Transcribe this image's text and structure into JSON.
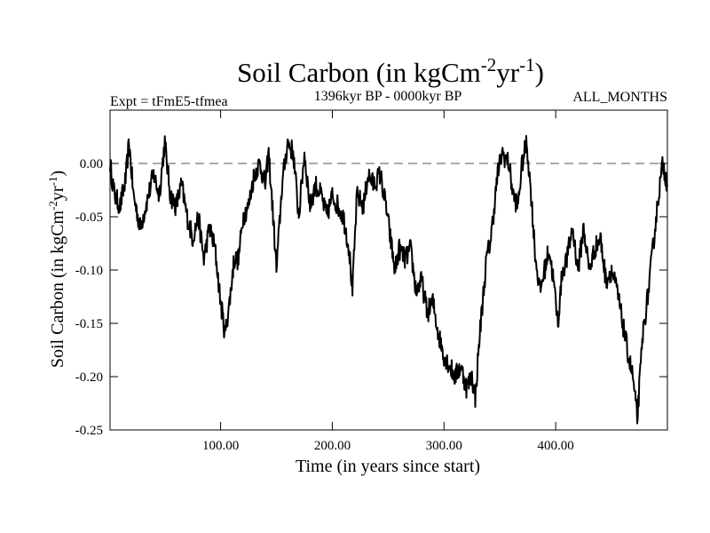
{
  "chart_data": {
    "type": "line",
    "title": {
      "main": "Soil Carbon (in kgCm",
      "sup1": "-2",
      "mid": "yr",
      "sup2": "-1",
      "end": ")"
    },
    "expt_label": "Expt = tFmE5-tfmea",
    "period_label": "1396kyr BP - 0000kyr BP",
    "season_label": "ALL_MONTHS",
    "xlabel": "Time (in years since start)",
    "ylabel": {
      "main": "Soil Carbon (in kgCm",
      "sup1": "-2",
      "mid": "yr",
      "sup2": "-1",
      "end": ")"
    },
    "xlim": [
      1,
      500
    ],
    "ylim": [
      -0.25,
      0.05
    ],
    "xticks": [
      100,
      200,
      300,
      400
    ],
    "xtick_labels": [
      "100.00",
      "200.00",
      "300.00",
      "400.00"
    ],
    "yticks": [
      0.0,
      -0.05,
      -0.1,
      -0.15,
      -0.2,
      -0.25
    ],
    "ytick_labels": [
      "0.00",
      "-0.05",
      "-0.10",
      "-0.15",
      "-0.20",
      "-0.25"
    ],
    "reference_line": {
      "y": 0.0,
      "style": "dashed"
    },
    "line_color": "#000000",
    "series": [
      {
        "name": "Soil Carbon",
        "x": [
          1,
          5,
          10,
          15,
          18,
          22,
          28,
          33,
          40,
          45,
          50,
          55,
          60,
          65,
          70,
          75,
          80,
          85,
          90,
          95,
          100,
          104,
          108,
          112,
          116,
          120,
          125,
          130,
          135,
          140,
          143,
          147,
          150,
          155,
          160,
          165,
          170,
          175,
          180,
          185,
          190,
          195,
          200,
          205,
          210,
          215,
          218,
          222,
          228,
          232,
          237,
          243,
          248,
          252,
          256,
          260,
          265,
          270,
          275,
          280,
          285,
          290,
          295,
          300,
          305,
          310,
          315,
          320,
          325,
          328,
          332,
          338,
          342,
          348,
          352,
          358,
          362,
          366,
          370,
          374,
          378,
          382,
          386,
          390,
          394,
          398,
          402,
          406,
          410,
          415,
          420,
          425,
          430,
          435,
          440,
          445,
          450,
          455,
          460,
          465,
          469,
          473,
          478,
          483,
          488,
          492,
          496,
          500
        ],
        "values": [
          0.0,
          -0.03,
          -0.04,
          -0.015,
          0.02,
          -0.03,
          -0.06,
          -0.04,
          -0.01,
          -0.03,
          0.02,
          -0.03,
          -0.04,
          -0.02,
          -0.05,
          -0.07,
          -0.05,
          -0.09,
          -0.06,
          -0.08,
          -0.13,
          -0.16,
          -0.13,
          -0.09,
          -0.09,
          -0.05,
          -0.04,
          -0.01,
          0.0,
          -0.02,
          0.01,
          -0.05,
          -0.1,
          -0.02,
          0.02,
          0.01,
          -0.05,
          0.01,
          -0.04,
          -0.02,
          -0.03,
          -0.05,
          -0.03,
          -0.04,
          -0.05,
          -0.08,
          -0.12,
          -0.03,
          -0.04,
          -0.01,
          -0.02,
          -0.01,
          -0.04,
          -0.07,
          -0.1,
          -0.08,
          -0.09,
          -0.08,
          -0.12,
          -0.11,
          -0.14,
          -0.13,
          -0.16,
          -0.18,
          -0.19,
          -0.2,
          -0.19,
          -0.21,
          -0.2,
          -0.22,
          -0.16,
          -0.09,
          -0.07,
          -0.01,
          0.01,
          0.0,
          -0.03,
          -0.04,
          0.0,
          0.02,
          -0.03,
          -0.09,
          -0.12,
          -0.1,
          -0.08,
          -0.11,
          -0.15,
          -0.1,
          -0.09,
          -0.06,
          -0.1,
          -0.06,
          -0.1,
          -0.08,
          -0.07,
          -0.11,
          -0.1,
          -0.12,
          -0.15,
          -0.18,
          -0.2,
          -0.24,
          -0.16,
          -0.12,
          -0.07,
          -0.03,
          0.0,
          -0.02
        ]
      }
    ]
  }
}
